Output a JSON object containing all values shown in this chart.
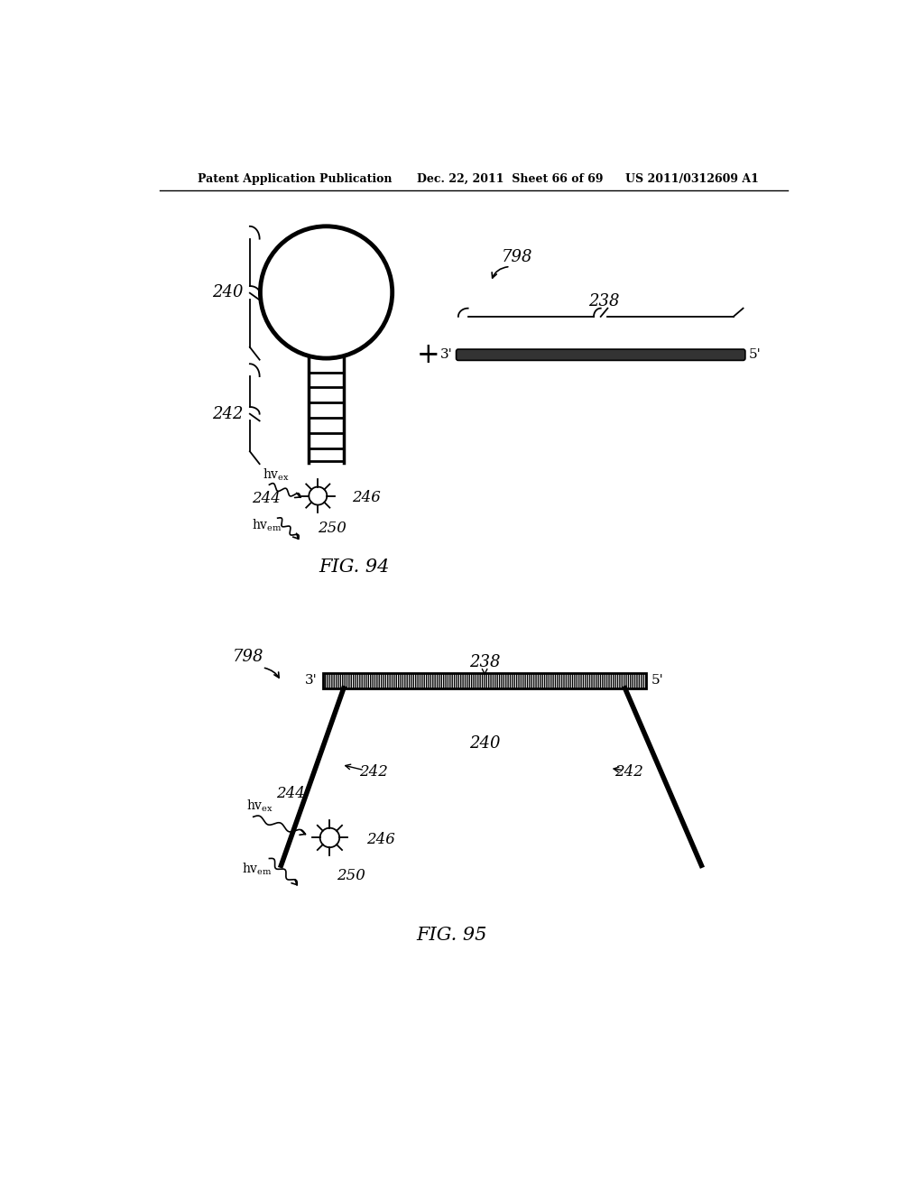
{
  "bg_color": "#ffffff",
  "header_left": "Patent Application Publication",
  "header_mid": "Dec. 22, 2011  Sheet 66 of 69",
  "header_right": "US 2011/0312609 A1",
  "fig94_label": "FIG. 94",
  "fig95_label": "FIG. 95",
  "labels": {
    "240_top": "240",
    "242_top": "242",
    "798_top": "798",
    "238_top": "238",
    "244_top": "244",
    "246_top": "246",
    "250_top": "250",
    "798_bot": "798",
    "238_bot": "238",
    "240_bot": "240",
    "242_bot_L": "242",
    "242_bot_R": "242",
    "244_bot": "244",
    "246_bot": "246",
    "250_bot": "250"
  }
}
